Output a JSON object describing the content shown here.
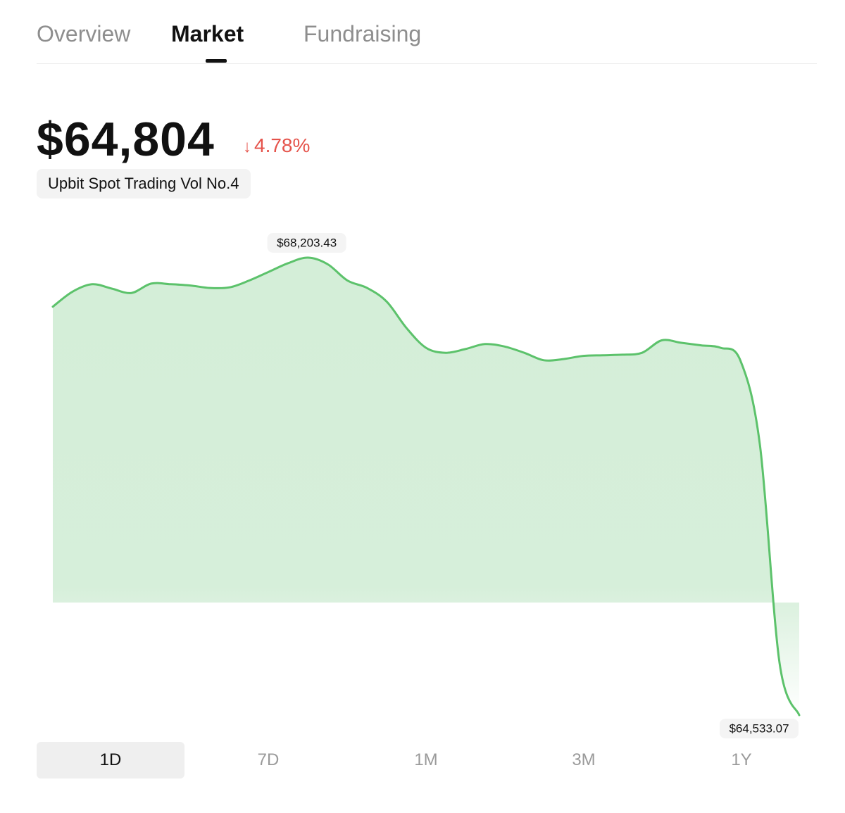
{
  "tabs": {
    "overview": "Overview",
    "market": "Market",
    "fundraising": "Fundraising",
    "active": "Market"
  },
  "header": {
    "price": "$64,804",
    "change_arrow": "↓",
    "change_value": "4.78%",
    "change_color": "#e5534b",
    "badge": "Upbit Spot Trading Vol No.4"
  },
  "chart_data": {
    "type": "area",
    "series": [
      {
        "values": [
          67810,
          67930,
          67990,
          67955,
          67920,
          67995,
          67990,
          67980,
          67960,
          67965,
          68020,
          68090,
          68160,
          68203.43,
          68150,
          68020,
          67960,
          67850,
          67640,
          67480,
          67440,
          67470,
          67510,
          67490,
          67440,
          67380,
          67390,
          67415,
          67420,
          67425,
          67440,
          67540,
          67520,
          67500,
          67480,
          67380,
          66700,
          64950,
          64533.07
        ]
      }
    ],
    "max_label": "$68,203.43",
    "min_label": "$64,533.07",
    "line_color": "#5cc26b",
    "fill_color": "#d4eed8",
    "grid": false,
    "legend": "none"
  },
  "ranges": {
    "items": [
      "1D",
      "7D",
      "1M",
      "3M",
      "1Y"
    ],
    "active": "1D"
  }
}
